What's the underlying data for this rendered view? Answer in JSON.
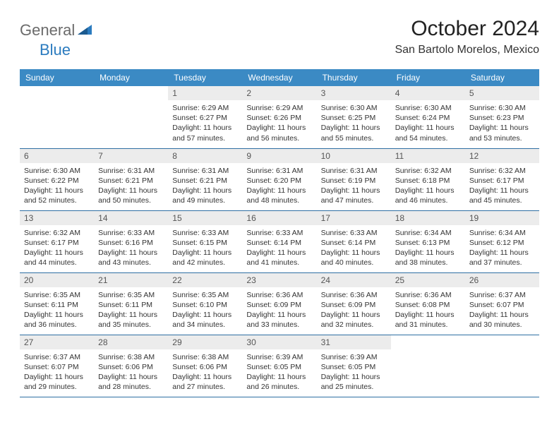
{
  "logo": {
    "word1": "General",
    "word2": "Blue"
  },
  "title": "October 2024",
  "location": "San Bartolo Morelos, Mexico",
  "colors": {
    "header_bg": "#3b8ac4",
    "header_text": "#ffffff",
    "daynum_bg": "#ececec",
    "row_border": "#2f6fa3",
    "logo_gray": "#6b6b6b",
    "logo_blue": "#2b7bbf"
  },
  "weekdays": [
    "Sunday",
    "Monday",
    "Tuesday",
    "Wednesday",
    "Thursday",
    "Friday",
    "Saturday"
  ],
  "layout": {
    "first_weekday_index": 2,
    "days_in_month": 31
  },
  "days": {
    "1": {
      "sunrise": "Sunrise: 6:29 AM",
      "sunset": "Sunset: 6:27 PM",
      "daylight": "Daylight: 11 hours and 57 minutes."
    },
    "2": {
      "sunrise": "Sunrise: 6:29 AM",
      "sunset": "Sunset: 6:26 PM",
      "daylight": "Daylight: 11 hours and 56 minutes."
    },
    "3": {
      "sunrise": "Sunrise: 6:30 AM",
      "sunset": "Sunset: 6:25 PM",
      "daylight": "Daylight: 11 hours and 55 minutes."
    },
    "4": {
      "sunrise": "Sunrise: 6:30 AM",
      "sunset": "Sunset: 6:24 PM",
      "daylight": "Daylight: 11 hours and 54 minutes."
    },
    "5": {
      "sunrise": "Sunrise: 6:30 AM",
      "sunset": "Sunset: 6:23 PM",
      "daylight": "Daylight: 11 hours and 53 minutes."
    },
    "6": {
      "sunrise": "Sunrise: 6:30 AM",
      "sunset": "Sunset: 6:22 PM",
      "daylight": "Daylight: 11 hours and 52 minutes."
    },
    "7": {
      "sunrise": "Sunrise: 6:31 AM",
      "sunset": "Sunset: 6:21 PM",
      "daylight": "Daylight: 11 hours and 50 minutes."
    },
    "8": {
      "sunrise": "Sunrise: 6:31 AM",
      "sunset": "Sunset: 6:21 PM",
      "daylight": "Daylight: 11 hours and 49 minutes."
    },
    "9": {
      "sunrise": "Sunrise: 6:31 AM",
      "sunset": "Sunset: 6:20 PM",
      "daylight": "Daylight: 11 hours and 48 minutes."
    },
    "10": {
      "sunrise": "Sunrise: 6:31 AM",
      "sunset": "Sunset: 6:19 PM",
      "daylight": "Daylight: 11 hours and 47 minutes."
    },
    "11": {
      "sunrise": "Sunrise: 6:32 AM",
      "sunset": "Sunset: 6:18 PM",
      "daylight": "Daylight: 11 hours and 46 minutes."
    },
    "12": {
      "sunrise": "Sunrise: 6:32 AM",
      "sunset": "Sunset: 6:17 PM",
      "daylight": "Daylight: 11 hours and 45 minutes."
    },
    "13": {
      "sunrise": "Sunrise: 6:32 AM",
      "sunset": "Sunset: 6:17 PM",
      "daylight": "Daylight: 11 hours and 44 minutes."
    },
    "14": {
      "sunrise": "Sunrise: 6:33 AM",
      "sunset": "Sunset: 6:16 PM",
      "daylight": "Daylight: 11 hours and 43 minutes."
    },
    "15": {
      "sunrise": "Sunrise: 6:33 AM",
      "sunset": "Sunset: 6:15 PM",
      "daylight": "Daylight: 11 hours and 42 minutes."
    },
    "16": {
      "sunrise": "Sunrise: 6:33 AM",
      "sunset": "Sunset: 6:14 PM",
      "daylight": "Daylight: 11 hours and 41 minutes."
    },
    "17": {
      "sunrise": "Sunrise: 6:33 AM",
      "sunset": "Sunset: 6:14 PM",
      "daylight": "Daylight: 11 hours and 40 minutes."
    },
    "18": {
      "sunrise": "Sunrise: 6:34 AM",
      "sunset": "Sunset: 6:13 PM",
      "daylight": "Daylight: 11 hours and 38 minutes."
    },
    "19": {
      "sunrise": "Sunrise: 6:34 AM",
      "sunset": "Sunset: 6:12 PM",
      "daylight": "Daylight: 11 hours and 37 minutes."
    },
    "20": {
      "sunrise": "Sunrise: 6:35 AM",
      "sunset": "Sunset: 6:11 PM",
      "daylight": "Daylight: 11 hours and 36 minutes."
    },
    "21": {
      "sunrise": "Sunrise: 6:35 AM",
      "sunset": "Sunset: 6:11 PM",
      "daylight": "Daylight: 11 hours and 35 minutes."
    },
    "22": {
      "sunrise": "Sunrise: 6:35 AM",
      "sunset": "Sunset: 6:10 PM",
      "daylight": "Daylight: 11 hours and 34 minutes."
    },
    "23": {
      "sunrise": "Sunrise: 6:36 AM",
      "sunset": "Sunset: 6:09 PM",
      "daylight": "Daylight: 11 hours and 33 minutes."
    },
    "24": {
      "sunrise": "Sunrise: 6:36 AM",
      "sunset": "Sunset: 6:09 PM",
      "daylight": "Daylight: 11 hours and 32 minutes."
    },
    "25": {
      "sunrise": "Sunrise: 6:36 AM",
      "sunset": "Sunset: 6:08 PM",
      "daylight": "Daylight: 11 hours and 31 minutes."
    },
    "26": {
      "sunrise": "Sunrise: 6:37 AM",
      "sunset": "Sunset: 6:07 PM",
      "daylight": "Daylight: 11 hours and 30 minutes."
    },
    "27": {
      "sunrise": "Sunrise: 6:37 AM",
      "sunset": "Sunset: 6:07 PM",
      "daylight": "Daylight: 11 hours and 29 minutes."
    },
    "28": {
      "sunrise": "Sunrise: 6:38 AM",
      "sunset": "Sunset: 6:06 PM",
      "daylight": "Daylight: 11 hours and 28 minutes."
    },
    "29": {
      "sunrise": "Sunrise: 6:38 AM",
      "sunset": "Sunset: 6:06 PM",
      "daylight": "Daylight: 11 hours and 27 minutes."
    },
    "30": {
      "sunrise": "Sunrise: 6:39 AM",
      "sunset": "Sunset: 6:05 PM",
      "daylight": "Daylight: 11 hours and 26 minutes."
    },
    "31": {
      "sunrise": "Sunrise: 6:39 AM",
      "sunset": "Sunset: 6:05 PM",
      "daylight": "Daylight: 11 hours and 25 minutes."
    }
  }
}
